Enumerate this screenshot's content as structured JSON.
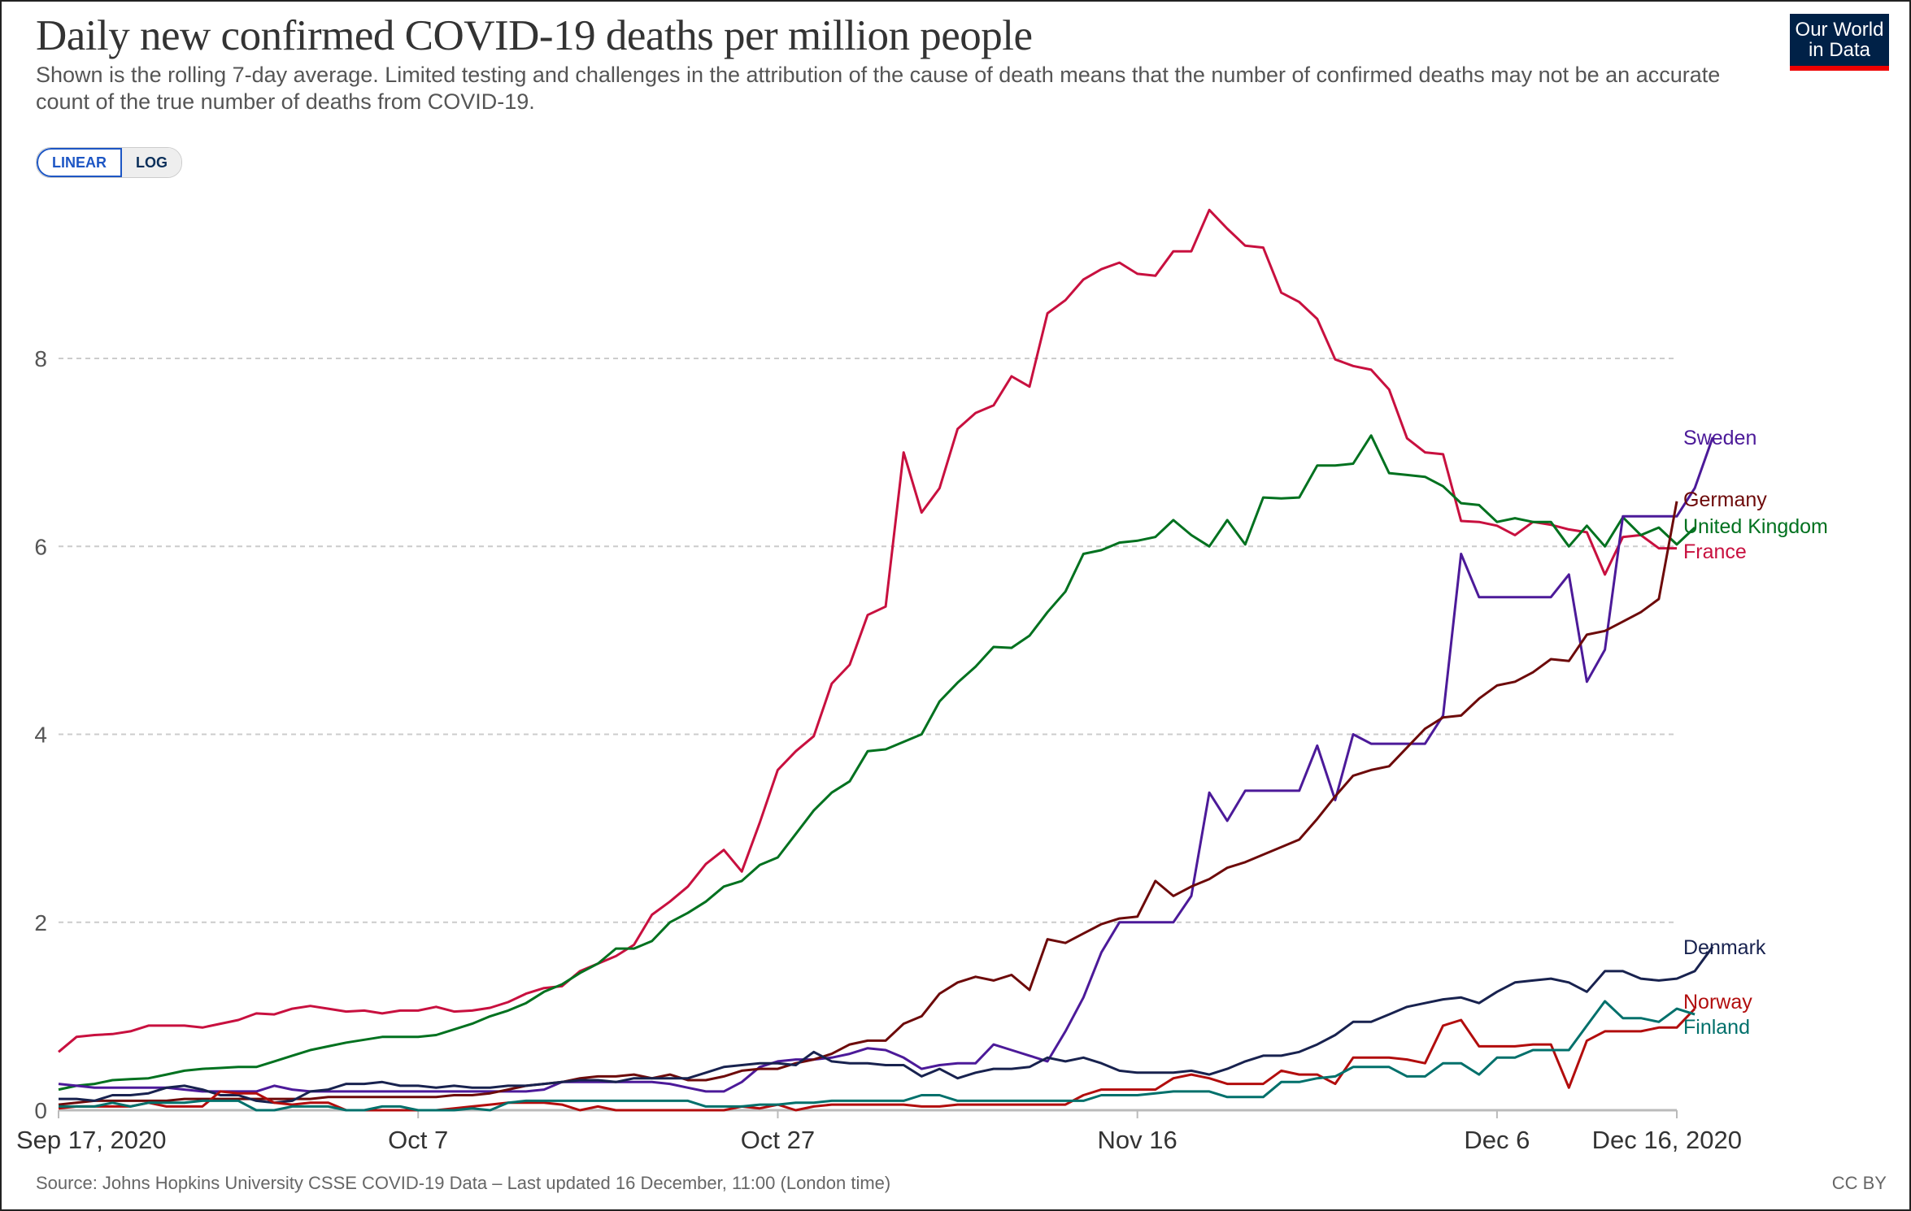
{
  "header": {
    "title": "Daily new confirmed COVID-19 deaths per million people",
    "subtitle": "Shown is the rolling 7-day average. Limited testing and challenges in the attribution of the cause of death means that the number of confirmed deaths may not be an accurate count of the true number of deaths from COVID-19.",
    "logo_line1": "Our World",
    "logo_line2": "in Data"
  },
  "scale_toggle": {
    "linear_label": "LINEAR",
    "log_label": "LOG",
    "selected": "LINEAR"
  },
  "footer": {
    "source": "Source: Johns Hopkins University CSSE COVID-19 Data – Last updated 16 December, 11:00 (London time)",
    "license": "CC BY"
  },
  "chart_data": {
    "type": "line",
    "title": "Daily new confirmed COVID-19 deaths per million people",
    "xlabel": "",
    "ylabel": "",
    "x_start": "2020-09-17",
    "x_end": "2020-12-16",
    "x_ticks": [
      "Sep 17, 2020",
      "Oct 7",
      "Oct 27",
      "Nov 16",
      "Dec 6",
      "Dec 16, 2020"
    ],
    "x_tick_days": [
      0,
      20,
      40,
      60,
      80,
      90
    ],
    "y_ticks": [
      0,
      2,
      4,
      6,
      8
    ],
    "ylim": [
      0,
      9.6
    ],
    "grid": "horizontal dashed",
    "legend": "right (end-of-line labels)",
    "series": [
      {
        "name": "France",
        "color": "#c8103f",
        "values": [
          0.62,
          0.78,
          0.8,
          0.81,
          0.84,
          0.9,
          0.9,
          0.9,
          0.88,
          0.92,
          0.96,
          1.03,
          1.02,
          1.08,
          1.11,
          1.08,
          1.05,
          1.06,
          1.03,
          1.06,
          1.06,
          1.1,
          1.05,
          1.06,
          1.09,
          1.15,
          1.24,
          1.3,
          1.32,
          1.48,
          1.56,
          1.64,
          1.76,
          2.08,
          2.22,
          2.38,
          2.62,
          2.77,
          2.54,
          3.06,
          3.62,
          3.82,
          3.98,
          4.54,
          4.74,
          5.27,
          5.36,
          7.0,
          6.36,
          6.62,
          7.25,
          7.42,
          7.5,
          7.81,
          7.7,
          8.48,
          8.62,
          8.84,
          8.95,
          9.02,
          8.9,
          8.88,
          9.14,
          9.14,
          9.58,
          9.38,
          9.2,
          9.18,
          8.7,
          8.6,
          8.42,
          7.99,
          7.92,
          7.88,
          7.67,
          7.15,
          7.0,
          6.98,
          6.27,
          6.26,
          6.22,
          6.12,
          6.26,
          6.23,
          6.18,
          6.15,
          5.7,
          6.1,
          6.12,
          5.98,
          5.98
        ]
      },
      {
        "name": "United Kingdom",
        "color": "#00711f",
        "values": [
          0.22,
          0.26,
          0.28,
          0.32,
          0.33,
          0.34,
          0.38,
          0.42,
          0.44,
          0.45,
          0.46,
          0.46,
          0.52,
          0.58,
          0.64,
          0.68,
          0.72,
          0.75,
          0.78,
          0.78,
          0.78,
          0.8,
          0.86,
          0.92,
          1.0,
          1.06,
          1.14,
          1.26,
          1.34,
          1.46,
          1.56,
          1.72,
          1.72,
          1.8,
          2.0,
          2.1,
          2.22,
          2.38,
          2.44,
          2.61,
          2.69,
          2.94,
          3.19,
          3.38,
          3.5,
          3.82,
          3.84,
          3.92,
          4.0,
          4.35,
          4.55,
          4.72,
          4.93,
          4.92,
          5.05,
          5.3,
          5.52,
          5.92,
          5.96,
          6.04,
          6.06,
          6.1,
          6.28,
          6.12,
          6.0,
          6.28,
          6.02,
          6.52,
          6.51,
          6.52,
          6.86,
          6.86,
          6.88,
          7.18,
          6.78,
          6.76,
          6.74,
          6.64,
          6.46,
          6.44,
          6.26,
          6.3,
          6.26,
          6.26,
          6.0,
          6.22,
          6.0,
          6.31,
          6.12,
          6.2,
          6.02,
          6.2
        ]
      },
      {
        "name": "Sweden",
        "color": "#4c1a99",
        "values": [
          0.28,
          0.26,
          0.24,
          0.24,
          0.24,
          0.24,
          0.24,
          0.22,
          0.2,
          0.2,
          0.2,
          0.2,
          0.26,
          0.22,
          0.2,
          0.2,
          0.2,
          0.2,
          0.2,
          0.2,
          0.2,
          0.2,
          0.2,
          0.2,
          0.2,
          0.2,
          0.2,
          0.22,
          0.3,
          0.3,
          0.3,
          0.3,
          0.3,
          0.3,
          0.28,
          0.24,
          0.2,
          0.2,
          0.3,
          0.46,
          0.52,
          0.54,
          0.54,
          0.56,
          0.6,
          0.66,
          0.64,
          0.56,
          0.44,
          0.48,
          0.5,
          0.5,
          0.7,
          0.64,
          0.58,
          0.52,
          0.84,
          1.2,
          1.68,
          2.0,
          2.0,
          2.0,
          2.0,
          2.28,
          3.38,
          3.08,
          3.4,
          3.4,
          3.4,
          3.4,
          3.88,
          3.3,
          4.0,
          3.9,
          3.9,
          3.9,
          3.9,
          4.2,
          5.92,
          5.46,
          5.46,
          5.46,
          5.46,
          5.46,
          5.7,
          4.56,
          4.9,
          6.32,
          6.32,
          6.32,
          6.32,
          6.62,
          7.16
        ]
      },
      {
        "name": "Germany",
        "color": "#6d0a0a",
        "values": [
          0.06,
          0.08,
          0.1,
          0.1,
          0.1,
          0.1,
          0.1,
          0.12,
          0.12,
          0.12,
          0.12,
          0.12,
          0.12,
          0.12,
          0.12,
          0.14,
          0.14,
          0.14,
          0.14,
          0.14,
          0.14,
          0.14,
          0.16,
          0.16,
          0.18,
          0.22,
          0.26,
          0.28,
          0.3,
          0.34,
          0.36,
          0.36,
          0.38,
          0.34,
          0.38,
          0.32,
          0.32,
          0.36,
          0.42,
          0.44,
          0.44,
          0.5,
          0.54,
          0.6,
          0.7,
          0.74,
          0.74,
          0.92,
          1.0,
          1.24,
          1.36,
          1.42,
          1.38,
          1.44,
          1.28,
          1.82,
          1.78,
          1.88,
          1.98,
          2.04,
          2.06,
          2.44,
          2.28,
          2.38,
          2.46,
          2.58,
          2.64,
          2.72,
          2.8,
          2.88,
          3.1,
          3.34,
          3.56,
          3.62,
          3.66,
          3.86,
          4.06,
          4.18,
          4.2,
          4.38,
          4.52,
          4.56,
          4.66,
          4.8,
          4.78,
          5.06,
          5.1,
          5.2,
          5.3,
          5.44,
          6.48
        ]
      },
      {
        "name": "Denmark",
        "color": "#18224f",
        "values": [
          0.12,
          0.12,
          0.1,
          0.16,
          0.16,
          0.18,
          0.24,
          0.26,
          0.22,
          0.16,
          0.16,
          0.1,
          0.08,
          0.1,
          0.2,
          0.22,
          0.28,
          0.28,
          0.3,
          0.26,
          0.26,
          0.24,
          0.26,
          0.24,
          0.24,
          0.26,
          0.26,
          0.28,
          0.3,
          0.32,
          0.32,
          0.3,
          0.34,
          0.34,
          0.34,
          0.34,
          0.4,
          0.46,
          0.48,
          0.5,
          0.5,
          0.48,
          0.62,
          0.52,
          0.5,
          0.5,
          0.48,
          0.48,
          0.36,
          0.44,
          0.34,
          0.4,
          0.44,
          0.44,
          0.46,
          0.56,
          0.52,
          0.56,
          0.5,
          0.42,
          0.4,
          0.4,
          0.4,
          0.42,
          0.38,
          0.44,
          0.52,
          0.58,
          0.58,
          0.62,
          0.7,
          0.8,
          0.94,
          0.94,
          1.02,
          1.1,
          1.14,
          1.18,
          1.2,
          1.14,
          1.26,
          1.36,
          1.38,
          1.4,
          1.36,
          1.26,
          1.48,
          1.48,
          1.4,
          1.38,
          1.4,
          1.48,
          1.74
        ]
      },
      {
        "name": "Norway",
        "color": "#b20d0d",
        "values": [
          0.02,
          0.04,
          0.04,
          0.04,
          0.04,
          0.08,
          0.04,
          0.04,
          0.04,
          0.2,
          0.18,
          0.18,
          0.08,
          0.06,
          0.08,
          0.08,
          0.0,
          0.0,
          0.0,
          0.0,
          0.0,
          0.0,
          0.02,
          0.04,
          0.06,
          0.08,
          0.08,
          0.08,
          0.06,
          0.0,
          0.04,
          0.0,
          0.0,
          0.0,
          0.0,
          0.0,
          0.0,
          0.0,
          0.04,
          0.02,
          0.06,
          0.0,
          0.04,
          0.06,
          0.06,
          0.06,
          0.06,
          0.06,
          0.04,
          0.04,
          0.06,
          0.06,
          0.06,
          0.06,
          0.06,
          0.06,
          0.06,
          0.16,
          0.22,
          0.22,
          0.22,
          0.22,
          0.34,
          0.38,
          0.34,
          0.28,
          0.28,
          0.28,
          0.42,
          0.38,
          0.38,
          0.28,
          0.56,
          0.56,
          0.56,
          0.54,
          0.5,
          0.9,
          0.96,
          0.68,
          0.68,
          0.68,
          0.7,
          0.7,
          0.24,
          0.74,
          0.84,
          0.84,
          0.84,
          0.88,
          0.88,
          1.08
        ]
      },
      {
        "name": "Finland",
        "color": "#00706b",
        "values": [
          0.04,
          0.04,
          0.04,
          0.08,
          0.04,
          0.08,
          0.08,
          0.08,
          0.1,
          0.1,
          0.1,
          0.0,
          0.0,
          0.04,
          0.04,
          0.04,
          0.0,
          0.0,
          0.04,
          0.04,
          0.0,
          0.0,
          0.0,
          0.02,
          0.0,
          0.08,
          0.1,
          0.1,
          0.1,
          0.1,
          0.1,
          0.1,
          0.1,
          0.1,
          0.1,
          0.1,
          0.04,
          0.04,
          0.04,
          0.06,
          0.06,
          0.08,
          0.08,
          0.1,
          0.1,
          0.1,
          0.1,
          0.1,
          0.16,
          0.16,
          0.1,
          0.1,
          0.1,
          0.1,
          0.1,
          0.1,
          0.1,
          0.1,
          0.16,
          0.16,
          0.16,
          0.18,
          0.2,
          0.2,
          0.2,
          0.14,
          0.14,
          0.14,
          0.3,
          0.3,
          0.34,
          0.36,
          0.46,
          0.46,
          0.46,
          0.36,
          0.36,
          0.5,
          0.5,
          0.38,
          0.56,
          0.56,
          0.64,
          0.64,
          0.64,
          0.9,
          1.16,
          0.98,
          0.98,
          0.94,
          1.08,
          1.02
        ]
      }
    ]
  }
}
